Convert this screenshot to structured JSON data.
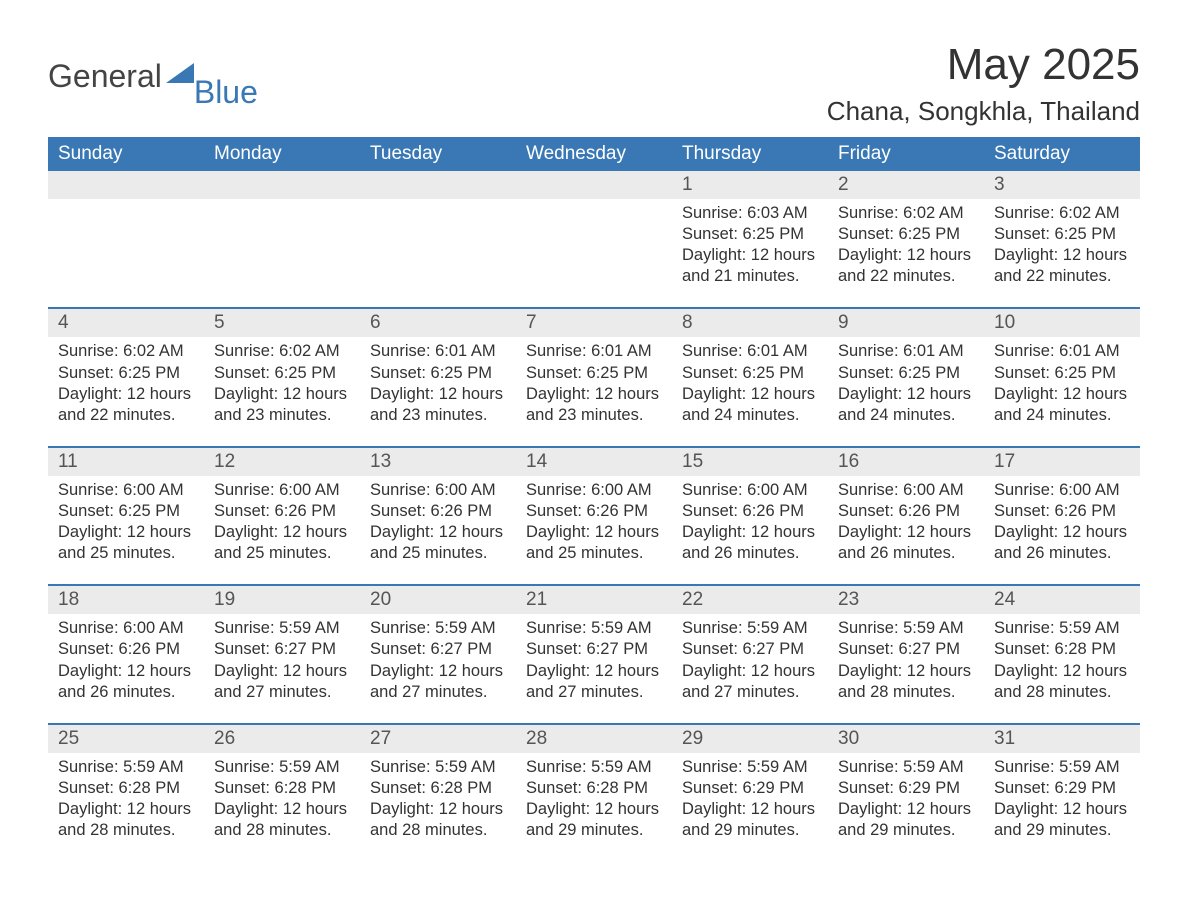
{
  "colors": {
    "brand_blue": "#3a78b5",
    "header_bg": "#3a78b5",
    "header_text": "#ffffff",
    "daynum_bg": "#ebebeb",
    "daynum_text": "#555555",
    "body_text": "#333333",
    "page_bg": "#ffffff",
    "week_border": "#3a78b5"
  },
  "fonts": {
    "family": "Arial",
    "title_size_pt": 33,
    "location_size_pt": 20,
    "weekday_size_pt": 14,
    "daynum_size_pt": 14,
    "body_size_pt": 12
  },
  "layout": {
    "columns": 7,
    "rows_with_data": 5,
    "aspect": "1188x918"
  },
  "logo": {
    "part1": "General",
    "part2": "Blue"
  },
  "title": "May 2025",
  "location": "Chana, Songkhla, Thailand",
  "weekdays": [
    "Sunday",
    "Monday",
    "Tuesday",
    "Wednesday",
    "Thursday",
    "Friday",
    "Saturday"
  ],
  "weeks": [
    {
      "nums": [
        "",
        "",
        "",
        "",
        "1",
        "2",
        "3"
      ],
      "cells": [
        null,
        null,
        null,
        null,
        {
          "sunrise": "Sunrise: 6:03 AM",
          "sunset": "Sunset: 6:25 PM",
          "day1": "Daylight: 12 hours",
          "day2": "and 21 minutes."
        },
        {
          "sunrise": "Sunrise: 6:02 AM",
          "sunset": "Sunset: 6:25 PM",
          "day1": "Daylight: 12 hours",
          "day2": "and 22 minutes."
        },
        {
          "sunrise": "Sunrise: 6:02 AM",
          "sunset": "Sunset: 6:25 PM",
          "day1": "Daylight: 12 hours",
          "day2": "and 22 minutes."
        }
      ]
    },
    {
      "nums": [
        "4",
        "5",
        "6",
        "7",
        "8",
        "9",
        "10"
      ],
      "cells": [
        {
          "sunrise": "Sunrise: 6:02 AM",
          "sunset": "Sunset: 6:25 PM",
          "day1": "Daylight: 12 hours",
          "day2": "and 22 minutes."
        },
        {
          "sunrise": "Sunrise: 6:02 AM",
          "sunset": "Sunset: 6:25 PM",
          "day1": "Daylight: 12 hours",
          "day2": "and 23 minutes."
        },
        {
          "sunrise": "Sunrise: 6:01 AM",
          "sunset": "Sunset: 6:25 PM",
          "day1": "Daylight: 12 hours",
          "day2": "and 23 minutes."
        },
        {
          "sunrise": "Sunrise: 6:01 AM",
          "sunset": "Sunset: 6:25 PM",
          "day1": "Daylight: 12 hours",
          "day2": "and 23 minutes."
        },
        {
          "sunrise": "Sunrise: 6:01 AM",
          "sunset": "Sunset: 6:25 PM",
          "day1": "Daylight: 12 hours",
          "day2": "and 24 minutes."
        },
        {
          "sunrise": "Sunrise: 6:01 AM",
          "sunset": "Sunset: 6:25 PM",
          "day1": "Daylight: 12 hours",
          "day2": "and 24 minutes."
        },
        {
          "sunrise": "Sunrise: 6:01 AM",
          "sunset": "Sunset: 6:25 PM",
          "day1": "Daylight: 12 hours",
          "day2": "and 24 minutes."
        }
      ]
    },
    {
      "nums": [
        "11",
        "12",
        "13",
        "14",
        "15",
        "16",
        "17"
      ],
      "cells": [
        {
          "sunrise": "Sunrise: 6:00 AM",
          "sunset": "Sunset: 6:25 PM",
          "day1": "Daylight: 12 hours",
          "day2": "and 25 minutes."
        },
        {
          "sunrise": "Sunrise: 6:00 AM",
          "sunset": "Sunset: 6:26 PM",
          "day1": "Daylight: 12 hours",
          "day2": "and 25 minutes."
        },
        {
          "sunrise": "Sunrise: 6:00 AM",
          "sunset": "Sunset: 6:26 PM",
          "day1": "Daylight: 12 hours",
          "day2": "and 25 minutes."
        },
        {
          "sunrise": "Sunrise: 6:00 AM",
          "sunset": "Sunset: 6:26 PM",
          "day1": "Daylight: 12 hours",
          "day2": "and 25 minutes."
        },
        {
          "sunrise": "Sunrise: 6:00 AM",
          "sunset": "Sunset: 6:26 PM",
          "day1": "Daylight: 12 hours",
          "day2": "and 26 minutes."
        },
        {
          "sunrise": "Sunrise: 6:00 AM",
          "sunset": "Sunset: 6:26 PM",
          "day1": "Daylight: 12 hours",
          "day2": "and 26 minutes."
        },
        {
          "sunrise": "Sunrise: 6:00 AM",
          "sunset": "Sunset: 6:26 PM",
          "day1": "Daylight: 12 hours",
          "day2": "and 26 minutes."
        }
      ]
    },
    {
      "nums": [
        "18",
        "19",
        "20",
        "21",
        "22",
        "23",
        "24"
      ],
      "cells": [
        {
          "sunrise": "Sunrise: 6:00 AM",
          "sunset": "Sunset: 6:26 PM",
          "day1": "Daylight: 12 hours",
          "day2": "and 26 minutes."
        },
        {
          "sunrise": "Sunrise: 5:59 AM",
          "sunset": "Sunset: 6:27 PM",
          "day1": "Daylight: 12 hours",
          "day2": "and 27 minutes."
        },
        {
          "sunrise": "Sunrise: 5:59 AM",
          "sunset": "Sunset: 6:27 PM",
          "day1": "Daylight: 12 hours",
          "day2": "and 27 minutes."
        },
        {
          "sunrise": "Sunrise: 5:59 AM",
          "sunset": "Sunset: 6:27 PM",
          "day1": "Daylight: 12 hours",
          "day2": "and 27 minutes."
        },
        {
          "sunrise": "Sunrise: 5:59 AM",
          "sunset": "Sunset: 6:27 PM",
          "day1": "Daylight: 12 hours",
          "day2": "and 27 minutes."
        },
        {
          "sunrise": "Sunrise: 5:59 AM",
          "sunset": "Sunset: 6:27 PM",
          "day1": "Daylight: 12 hours",
          "day2": "and 28 minutes."
        },
        {
          "sunrise": "Sunrise: 5:59 AM",
          "sunset": "Sunset: 6:28 PM",
          "day1": "Daylight: 12 hours",
          "day2": "and 28 minutes."
        }
      ]
    },
    {
      "nums": [
        "25",
        "26",
        "27",
        "28",
        "29",
        "30",
        "31"
      ],
      "cells": [
        {
          "sunrise": "Sunrise: 5:59 AM",
          "sunset": "Sunset: 6:28 PM",
          "day1": "Daylight: 12 hours",
          "day2": "and 28 minutes."
        },
        {
          "sunrise": "Sunrise: 5:59 AM",
          "sunset": "Sunset: 6:28 PM",
          "day1": "Daylight: 12 hours",
          "day2": "and 28 minutes."
        },
        {
          "sunrise": "Sunrise: 5:59 AM",
          "sunset": "Sunset: 6:28 PM",
          "day1": "Daylight: 12 hours",
          "day2": "and 28 minutes."
        },
        {
          "sunrise": "Sunrise: 5:59 AM",
          "sunset": "Sunset: 6:28 PM",
          "day1": "Daylight: 12 hours",
          "day2": "and 29 minutes."
        },
        {
          "sunrise": "Sunrise: 5:59 AM",
          "sunset": "Sunset: 6:29 PM",
          "day1": "Daylight: 12 hours",
          "day2": "and 29 minutes."
        },
        {
          "sunrise": "Sunrise: 5:59 AM",
          "sunset": "Sunset: 6:29 PM",
          "day1": "Daylight: 12 hours",
          "day2": "and 29 minutes."
        },
        {
          "sunrise": "Sunrise: 5:59 AM",
          "sunset": "Sunset: 6:29 PM",
          "day1": "Daylight: 12 hours",
          "day2": "and 29 minutes."
        }
      ]
    }
  ]
}
